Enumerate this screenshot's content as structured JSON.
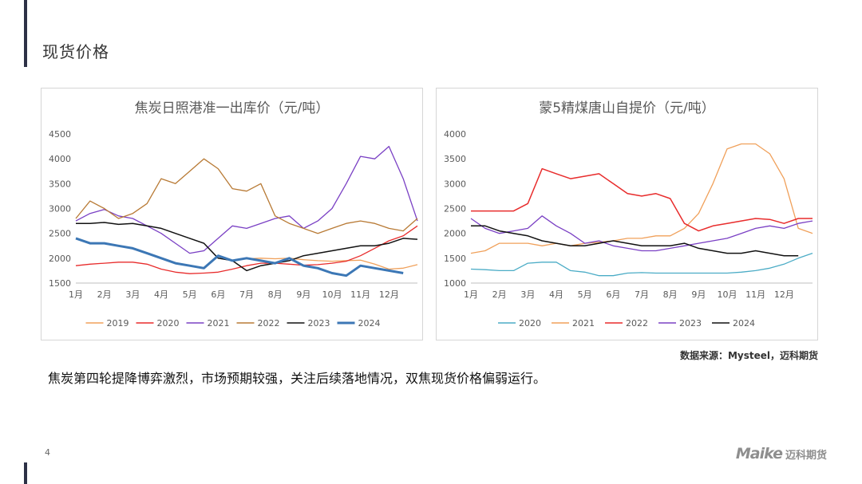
{
  "slide": {
    "title": "现货价格",
    "summary": "焦炭第四轮提降博弈激烈，市场预期较强，关注后续落地情况，双焦现货价格偏弱运行。",
    "source": "数据来源：Mysteel，迈科期货",
    "page_number": "4",
    "logo": {
      "mark": "Maike",
      "text": "迈科期货"
    }
  },
  "chart_data": [
    {
      "type": "line",
      "title": "焦炭日照港准一出库价（元/吨）",
      "categories": [
        "1月",
        "2月",
        "3月",
        "4月",
        "5月",
        "6月",
        "7月",
        "8月",
        "9月",
        "10月",
        "11月",
        "12月"
      ],
      "yticks": [
        1500,
        2000,
        2500,
        3000,
        3500,
        4000,
        4500
      ],
      "ylim": [
        1500,
        4500
      ],
      "grid": false,
      "legend_position": "bottom",
      "series": [
        {
          "name": "2019",
          "color": "#f0a05a",
          "width": 1.3,
          "x": [
            0,
            0.5,
            1,
            1.5,
            2,
            2.5,
            3,
            3.5,
            4,
            4.5,
            5,
            5.5,
            6,
            6.5,
            7,
            7.5,
            8,
            8.5,
            9,
            9.5,
            10,
            10.5,
            11,
            11.5,
            12
          ],
          "y": [
            null,
            null,
            null,
            null,
            null,
            null,
            null,
            null,
            null,
            null,
            null,
            null,
            1990,
            2000,
            1990,
            2000,
            1970,
            1950,
            1940,
            1950,
            1960,
            1880,
            1780,
            1800,
            1870
          ]
        },
        {
          "name": "2020",
          "color": "#e82c2c",
          "width": 1.3,
          "x": [
            0,
            0.5,
            1,
            1.5,
            2,
            2.5,
            3,
            3.5,
            4,
            4.5,
            5,
            5.5,
            6,
            6.5,
            7,
            7.5,
            8,
            8.5,
            9,
            9.5,
            10,
            10.5,
            11,
            11.5,
            12
          ],
          "y": [
            1850,
            1880,
            1900,
            1920,
            1920,
            1880,
            1780,
            1720,
            1690,
            1700,
            1720,
            1780,
            1850,
            1900,
            1900,
            1880,
            1860,
            1870,
            1900,
            1940,
            2050,
            2200,
            2350,
            2450,
            2650
          ]
        },
        {
          "name": "2021",
          "color": "#7a40c4",
          "width": 1.3,
          "x": [
            0,
            0.5,
            1,
            1.5,
            2,
            2.5,
            3,
            3.5,
            4,
            4.5,
            5,
            5.5,
            6,
            6.5,
            7,
            7.5,
            8,
            8.5,
            9,
            9.5,
            10,
            10.5,
            11,
            11.5,
            12
          ],
          "y": [
            2750,
            2900,
            2980,
            2850,
            2800,
            2650,
            2500,
            2300,
            2100,
            2150,
            2400,
            2650,
            2600,
            2700,
            2800,
            2850,
            2600,
            2750,
            3000,
            3500,
            4050,
            4000,
            4250,
            3600,
            2750
          ]
        },
        {
          "name": "2022",
          "color": "#b87a35",
          "width": 1.3,
          "x": [
            0,
            0.5,
            1,
            1.5,
            2,
            2.5,
            3,
            3.5,
            4,
            4.5,
            5,
            5.5,
            6,
            6.5,
            7,
            7.5,
            8,
            8.5,
            9,
            9.5,
            10,
            10.5,
            11,
            11.5,
            12
          ],
          "y": [
            2800,
            3150,
            3000,
            2800,
            2900,
            3100,
            3600,
            3500,
            3750,
            4000,
            3800,
            3400,
            3350,
            3500,
            2850,
            2700,
            2600,
            2500,
            2600,
            2700,
            2750,
            2700,
            2600,
            2550,
            2800
          ]
        },
        {
          "name": "2023",
          "color": "#111111",
          "width": 1.5,
          "x": [
            0,
            0.5,
            1,
            1.5,
            2,
            2.5,
            3,
            3.5,
            4,
            4.5,
            5,
            5.5,
            6,
            6.5,
            7,
            7.5,
            8,
            8.5,
            9,
            9.5,
            10,
            10.5,
            11,
            11.5,
            12
          ],
          "y": [
            2700,
            2700,
            2720,
            2680,
            2700,
            2650,
            2600,
            2500,
            2400,
            2300,
            2000,
            1950,
            1750,
            1850,
            1900,
            1950,
            2050,
            2100,
            2150,
            2200,
            2250,
            2250,
            2300,
            2400,
            2380
          ]
        },
        {
          "name": "2024",
          "color": "#3c77b5",
          "width": 3,
          "x": [
            0,
            0.5,
            1,
            1.5,
            2,
            2.5,
            3,
            3.5,
            4,
            4.5,
            5,
            5.5,
            6,
            6.5,
            7,
            7.5,
            8,
            8.5,
            9,
            9.5,
            10,
            10.5,
            11,
            11.5,
            12
          ],
          "y": [
            2400,
            2300,
            2300,
            2250,
            2200,
            2100,
            2000,
            1900,
            1850,
            1800,
            2050,
            1950,
            2000,
            1950,
            1900,
            2000,
            1850,
            1800,
            1700,
            1650,
            1850,
            1800,
            1750,
            1700,
            null
          ]
        }
      ]
    },
    {
      "type": "line",
      "title": "蒙5精煤唐山自提价（元/吨）",
      "categories": [
        "1月",
        "2月",
        "3月",
        "4月",
        "5月",
        "6月",
        "7月",
        "8月",
        "9月",
        "10月",
        "11月",
        "12月"
      ],
      "yticks": [
        1000,
        1500,
        2000,
        2500,
        3000,
        3500,
        4000
      ],
      "ylim": [
        1000,
        4000
      ],
      "grid": false,
      "legend_position": "bottom",
      "series": [
        {
          "name": "2020",
          "color": "#4bacc6",
          "width": 1.3,
          "x": [
            0,
            0.5,
            1,
            1.5,
            2,
            2.5,
            3,
            3.5,
            4,
            4.5,
            5,
            5.5,
            6,
            6.5,
            7,
            7.5,
            8,
            8.5,
            9,
            9.5,
            10,
            10.5,
            11,
            11.5,
            12
          ],
          "y": [
            1280,
            1270,
            1250,
            1250,
            1400,
            1420,
            1420,
            1250,
            1220,
            1150,
            1150,
            1200,
            1210,
            1200,
            1200,
            1200,
            1200,
            1200,
            1200,
            1220,
            1250,
            1300,
            1380,
            1500,
            1600
          ]
        },
        {
          "name": "2021",
          "color": "#f0a05a",
          "width": 1.3,
          "x": [
            0,
            0.5,
            1,
            1.5,
            2,
            2.5,
            3,
            3.5,
            4,
            4.5,
            5,
            5.5,
            6,
            6.5,
            7,
            7.5,
            8,
            8.5,
            9,
            9.5,
            10,
            10.5,
            11,
            11.5,
            12
          ],
          "y": [
            1600,
            1650,
            1800,
            1800,
            1800,
            1750,
            1800,
            1750,
            1800,
            1820,
            1850,
            1900,
            1900,
            1950,
            1950,
            2100,
            2400,
            3000,
            3700,
            3800,
            3800,
            3600,
            3100,
            2100,
            2000
          ]
        },
        {
          "name": "2022",
          "color": "#e82c2c",
          "width": 1.5,
          "x": [
            0,
            0.5,
            1,
            1.5,
            2,
            2.5,
            3,
            3.5,
            4,
            4.5,
            5,
            5.5,
            6,
            6.5,
            7,
            7.5,
            8,
            8.5,
            9,
            9.5,
            10,
            10.5,
            11,
            11.5,
            12
          ],
          "y": [
            2450,
            2450,
            2450,
            2450,
            2600,
            3300,
            3200,
            3100,
            3150,
            3200,
            3000,
            2800,
            2750,
            2800,
            2700,
            2200,
            2050,
            2150,
            2200,
            2250,
            2300,
            2280,
            2200,
            2300,
            2300
          ]
        },
        {
          "name": "2023",
          "color": "#7a40c4",
          "width": 1.3,
          "x": [
            0,
            0.5,
            1,
            1.5,
            2,
            2.5,
            3,
            3.5,
            4,
            4.5,
            5,
            5.5,
            6,
            6.5,
            7,
            7.5,
            8,
            8.5,
            9,
            9.5,
            10,
            10.5,
            11,
            11.5,
            12
          ],
          "y": [
            2300,
            2100,
            2000,
            2050,
            2100,
            2350,
            2150,
            2000,
            1800,
            1850,
            1750,
            1700,
            1650,
            1650,
            1700,
            1750,
            1800,
            1850,
            1900,
            2000,
            2100,
            2150,
            2100,
            2200,
            2250
          ]
        },
        {
          "name": "2024",
          "color": "#111111",
          "width": 1.5,
          "x": [
            0,
            0.5,
            1,
            1.5,
            2,
            2.5,
            3,
            3.5,
            4,
            4.5,
            5,
            5.5,
            6,
            6.5,
            7,
            7.5,
            8,
            8.5,
            9,
            9.5,
            10,
            10.5,
            11,
            11.5,
            12
          ],
          "y": [
            2150,
            2150,
            2050,
            2000,
            1950,
            1850,
            1800,
            1750,
            1750,
            1800,
            1850,
            1800,
            1750,
            1750,
            1750,
            1800,
            1700,
            1650,
            1600,
            1600,
            1650,
            1600,
            1550,
            1550,
            null
          ]
        }
      ]
    }
  ]
}
